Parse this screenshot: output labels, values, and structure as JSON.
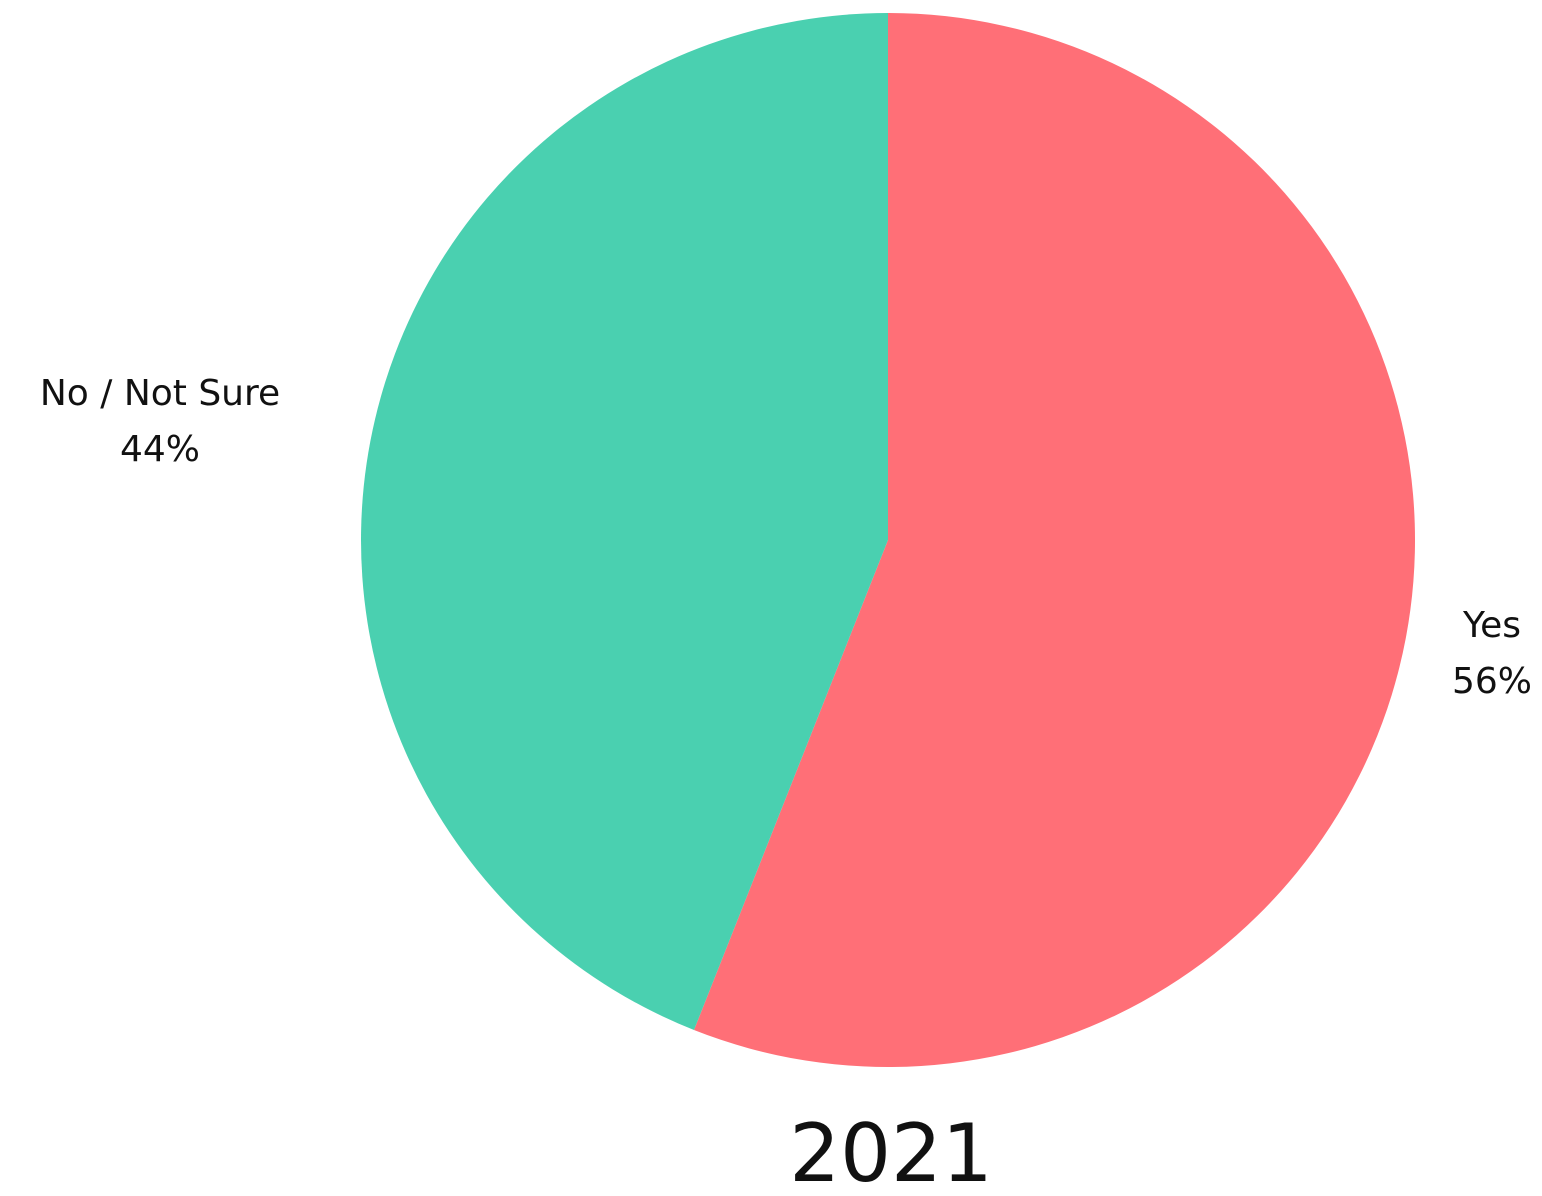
{
  "chart_data": {
    "type": "pie",
    "caption": "2021",
    "start": "12 o'clock",
    "direction": "clockwise",
    "slices": [
      {
        "label": "Yes",
        "value": 56,
        "value_label": "56%",
        "color": "#FF6F77"
      },
      {
        "label": "No / Not Sure",
        "value": 44,
        "value_label": "44%",
        "color": "#4AD0B0"
      }
    ]
  }
}
